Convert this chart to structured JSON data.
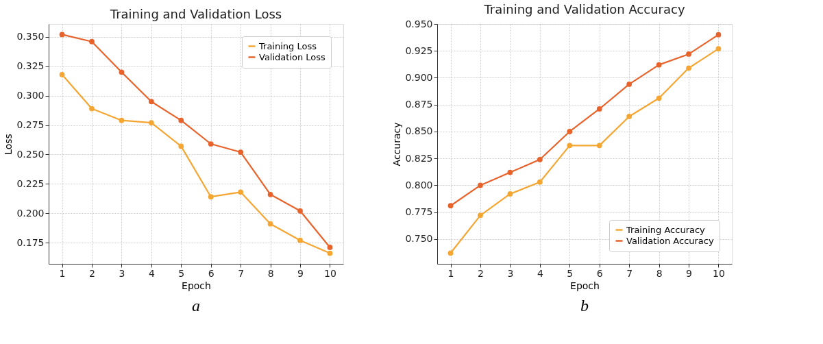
{
  "chart_data": [
    {
      "type": "line",
      "title": "Training and Validation Loss",
      "xlabel": "Epoch",
      "ylabel": "Loss",
      "x": [
        1,
        2,
        3,
        4,
        5,
        6,
        7,
        8,
        9,
        10
      ],
      "series": [
        {
          "name": "Training Loss",
          "color": "#f5a632",
          "values": [
            0.318,
            0.289,
            0.279,
            0.277,
            0.257,
            0.214,
            0.218,
            0.191,
            0.177,
            0.166
          ]
        },
        {
          "name": "Validation Loss",
          "color": "#e8632b",
          "values": [
            0.352,
            0.346,
            0.32,
            0.295,
            0.279,
            0.259,
            0.252,
            0.216,
            0.202,
            0.171
          ]
        }
      ],
      "xlim": [
        0.55,
        10.45
      ],
      "xticks": [
        1,
        2,
        3,
        4,
        5,
        6,
        7,
        8,
        9,
        10
      ],
      "ylim": [
        0.157,
        0.361
      ],
      "yticks": [
        0.175,
        {
          "value": 0.2,
          "label": "0.200"
        },
        0.225,
        {
          "value": 0.25,
          "label": "0.250"
        },
        0.275,
        {
          "value": 0.3,
          "label": "0.300"
        },
        0.325,
        {
          "value": 0.35,
          "label": "0.350"
        }
      ],
      "grid": true,
      "legend": "top right",
      "marker": "circle",
      "line_style": "solid",
      "annotations": [
        "a"
      ]
    },
    {
      "type": "line",
      "title": "Training and Validation Accuracy",
      "xlabel": "Epoch",
      "ylabel": "Accuracy",
      "x": [
        1,
        2,
        3,
        4,
        5,
        6,
        7,
        8,
        9,
        10
      ],
      "series": [
        {
          "name": "Training Accuracy",
          "color": "#f5a632",
          "values": [
            0.737,
            0.772,
            0.792,
            0.803,
            0.837,
            0.837,
            0.864,
            0.881,
            0.909,
            0.927
          ]
        },
        {
          "name": "Validation Accuracy",
          "color": "#e8632b",
          "values": [
            0.781,
            0.8,
            0.812,
            0.824,
            0.85,
            0.871,
            0.894,
            0.912,
            0.922,
            0.94
          ]
        }
      ],
      "xlim": [
        0.55,
        10.45
      ],
      "xticks": [
        1,
        2,
        3,
        4,
        5,
        6,
        7,
        8,
        9,
        10
      ],
      "ylim": [
        0.727,
        0.95
      ],
      "yticks": [
        {
          "value": 0.75,
          "label": "0.750"
        },
        0.775,
        {
          "value": 0.8,
          "label": "0.800"
        },
        0.825,
        {
          "value": 0.85,
          "label": "0.850"
        },
        0.875,
        {
          "value": 0.9,
          "label": "0.900"
        },
        0.925,
        {
          "value": 0.95,
          "label": "0.950"
        }
      ],
      "grid": true,
      "legend": "bottom right",
      "marker": "circle",
      "line_style": "solid",
      "annotations": [
        "b"
      ]
    }
  ]
}
